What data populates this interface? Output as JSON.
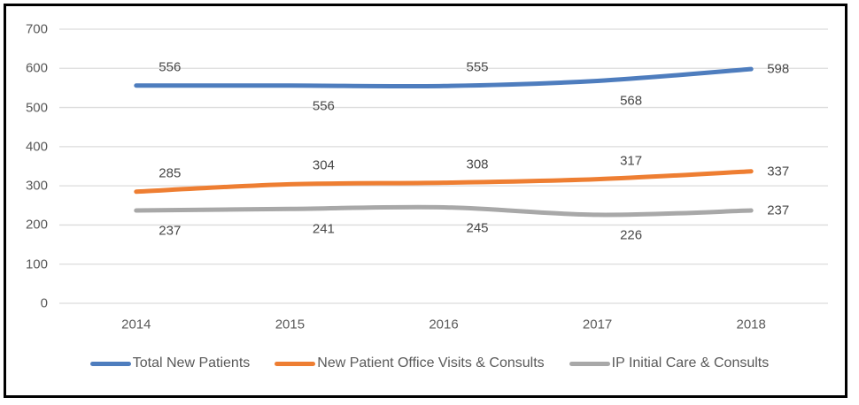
{
  "chart_data": {
    "type": "line",
    "title": "",
    "xlabel": "",
    "ylabel": "",
    "categories": [
      "2014",
      "2015",
      "2016",
      "2017",
      "2018"
    ],
    "series": [
      {
        "name": "Total New Patients",
        "color": "#4e7dbe",
        "values": [
          556,
          556,
          555,
          568,
          598
        ],
        "data_labels": [
          "556",
          "556",
          "555",
          "568",
          "598"
        ],
        "label_positions": [
          "above",
          "below",
          "above",
          "below",
          "right"
        ]
      },
      {
        "name": "New Patient Office Visits & Consults",
        "color": "#ee7e32",
        "values": [
          285,
          304,
          308,
          317,
          337
        ],
        "data_labels": [
          "285",
          "304",
          "308",
          "317",
          "337"
        ],
        "label_positions": [
          "above",
          "above",
          "above",
          "above",
          "right"
        ]
      },
      {
        "name": "IP Initial Care & Consults",
        "color": "#a8a8a8",
        "values": [
          237,
          241,
          245,
          226,
          237
        ],
        "data_labels": [
          "237",
          "241",
          "245",
          "226",
          "237"
        ],
        "label_positions": [
          "below",
          "below",
          "below",
          "below",
          "right"
        ]
      }
    ],
    "ylim": [
      0,
      700
    ],
    "yticks": [
      0,
      100,
      200,
      300,
      400,
      500,
      600,
      700
    ],
    "grid": true,
    "legend_position": "bottom",
    "colors": {
      "gridline": "#dcdcdc",
      "axis_text": "#595959",
      "data_label_text": "#474747",
      "frame_border": "#000000",
      "background": "#ffffff"
    }
  }
}
